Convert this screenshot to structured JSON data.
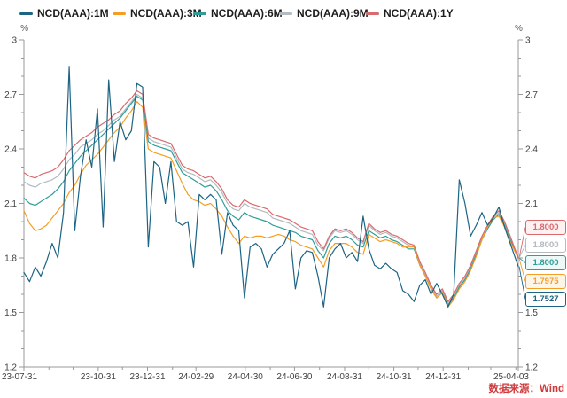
{
  "axis_unit": "%",
  "footer": {
    "source_label": "数据来源：Wind",
    "color": "#d0393b"
  },
  "callouts": [
    {
      "series": "NCD(AAA):1Y",
      "value": "1.8000",
      "color": "#d96a6e",
      "bg": "#fdf1f1"
    },
    {
      "series": "NCD(AAA):9M",
      "value": "1.8000",
      "color": "#b3bac0",
      "bg": "#ffffff"
    },
    {
      "series": "NCD(AAA):6M",
      "value": "1.8000",
      "color": "#2f9e98",
      "bg": "#eef8f7"
    },
    {
      "series": "NCD(AAA):3M",
      "value": "1.7975",
      "color": "#f59e23",
      "bg": "#fdf5e8"
    },
    {
      "series": "NCD(AAA):1M",
      "value": "1.7527",
      "color": "#1c6484",
      "bg": "#ffffff"
    }
  ],
  "chart_data": {
    "type": "line",
    "title": "",
    "ylabel": "%",
    "ylim": [
      1.2,
      3.0
    ],
    "y_minor_step": 0.1,
    "grid": false,
    "legend_position": "top",
    "x_start_date": "2023-07-31",
    "x_end_date": "2025-04-03",
    "x_total_days": 612,
    "x_axis_labels": [
      {
        "label": "23-07-31",
        "day": 0
      },
      {
        "label": "23-10-31",
        "day": 92
      },
      {
        "label": "23-12-31",
        "day": 153
      },
      {
        "label": "24-02-29",
        "day": 213
      },
      {
        "label": "24-04-30",
        "day": 274
      },
      {
        "label": "24-06-30",
        "day": 335
      },
      {
        "label": "24-08-31",
        "day": 397
      },
      {
        "label": "24-10-31",
        "day": 458
      },
      {
        "label": "24-12-31",
        "day": 519
      },
      {
        "label": "25-04-03",
        "day": 612
      }
    ],
    "x_month_tick_days": [
      31,
      61,
      122,
      184,
      244,
      305,
      366,
      427,
      488,
      550,
      578,
      609
    ],
    "y_ticks": [
      {
        "label": "3",
        "value": 3.0
      },
      {
        "label": "2.7",
        "value": 2.7
      },
      {
        "label": "2.4",
        "value": 2.4
      },
      {
        "label": "2.1",
        "value": 2.1
      },
      {
        "label": "1.8",
        "value": 1.8
      },
      {
        "label": "1.5",
        "value": 1.5
      },
      {
        "label": "1.2",
        "value": 1.2
      }
    ],
    "x_days": [
      0,
      7,
      14,
      21,
      28,
      35,
      42,
      49,
      56,
      63,
      70,
      77,
      84,
      91,
      98,
      105,
      112,
      119,
      126,
      133,
      140,
      147,
      154,
      161,
      168,
      175,
      182,
      189,
      196,
      203,
      210,
      217,
      224,
      231,
      238,
      245,
      252,
      259,
      266,
      273,
      280,
      287,
      294,
      301,
      308,
      315,
      322,
      329,
      336,
      343,
      350,
      357,
      364,
      371,
      378,
      385,
      392,
      399,
      406,
      413,
      420,
      427,
      434,
      441,
      448,
      455,
      462,
      469,
      476,
      483,
      490,
      497,
      504,
      511,
      518,
      525,
      532,
      539,
      546,
      553,
      560,
      567,
      574,
      581,
      588,
      595,
      602,
      612
    ],
    "series": [
      {
        "name": "NCD(AAA):1M",
        "color": "#1c6484",
        "last_label": "1.7527",
        "values": [
          1.72,
          1.67,
          1.75,
          1.7,
          1.78,
          1.88,
          1.8,
          2.05,
          2.85,
          1.95,
          2.25,
          2.45,
          2.3,
          2.62,
          1.97,
          2.78,
          2.33,
          2.55,
          2.45,
          2.5,
          2.76,
          2.74,
          1.86,
          2.33,
          2.3,
          2.1,
          2.33,
          2.0,
          1.98,
          2.0,
          1.75,
          2.15,
          2.12,
          2.15,
          2.12,
          1.82,
          2.05,
          1.98,
          1.95,
          1.58,
          1.86,
          1.88,
          1.85,
          1.75,
          1.82,
          1.85,
          1.88,
          1.95,
          1.63,
          1.8,
          1.84,
          1.83,
          1.7,
          1.53,
          1.8,
          1.85,
          1.88,
          1.8,
          1.83,
          1.78,
          2.03,
          1.85,
          1.76,
          1.74,
          1.77,
          1.74,
          1.72,
          1.62,
          1.6,
          1.56,
          1.65,
          1.68,
          1.6,
          1.66,
          1.6,
          1.53,
          1.6,
          2.23,
          2.1,
          1.92,
          1.98,
          2.05,
          1.98,
          2.02,
          2.08,
          1.97,
          1.88,
          1.7527
        ]
      },
      {
        "name": "NCD(AAA):3M",
        "color": "#f59e23",
        "last_label": "1.7975",
        "values": [
          2.06,
          1.99,
          1.95,
          1.96,
          1.98,
          2.02,
          2.06,
          2.1,
          2.16,
          2.2,
          2.26,
          2.31,
          2.34,
          2.37,
          2.41,
          2.45,
          2.49,
          2.52,
          2.57,
          2.61,
          2.66,
          2.63,
          2.4,
          2.38,
          2.37,
          2.36,
          2.35,
          2.28,
          2.21,
          2.15,
          2.12,
          2.11,
          2.09,
          2.1,
          2.07,
          2.03,
          1.97,
          1.92,
          1.88,
          1.92,
          1.91,
          1.92,
          1.92,
          1.91,
          1.92,
          1.93,
          1.92,
          1.9,
          1.89,
          1.87,
          1.86,
          1.85,
          1.8,
          1.75,
          1.84,
          1.88,
          1.88,
          1.88,
          1.86,
          1.83,
          1.82,
          1.93,
          1.91,
          1.89,
          1.9,
          1.89,
          1.88,
          1.86,
          1.86,
          1.86,
          1.76,
          1.7,
          1.63,
          1.58,
          1.61,
          1.53,
          1.57,
          1.63,
          1.67,
          1.73,
          1.81,
          1.9,
          1.97,
          2.02,
          2.03,
          1.97,
          1.89,
          1.7975
        ]
      },
      {
        "name": "NCD(AAA):6M",
        "color": "#2f9e98",
        "last_label": "1.8000",
        "values": [
          2.13,
          2.1,
          2.09,
          2.11,
          2.13,
          2.15,
          2.18,
          2.22,
          2.28,
          2.32,
          2.36,
          2.39,
          2.42,
          2.45,
          2.48,
          2.51,
          2.54,
          2.57,
          2.61,
          2.65,
          2.69,
          2.67,
          2.44,
          2.42,
          2.41,
          2.4,
          2.39,
          2.33,
          2.27,
          2.25,
          2.23,
          2.21,
          2.19,
          2.2,
          2.17,
          2.12,
          2.06,
          2.03,
          2.01,
          2.05,
          2.03,
          2.02,
          2.01,
          2.0,
          1.98,
          1.97,
          1.96,
          1.95,
          1.94,
          1.92,
          1.91,
          1.9,
          1.84,
          1.8,
          1.88,
          1.92,
          1.91,
          1.92,
          1.9,
          1.87,
          1.86,
          1.95,
          1.93,
          1.91,
          1.92,
          1.9,
          1.89,
          1.87,
          1.85,
          1.85,
          1.76,
          1.7,
          1.63,
          1.58,
          1.61,
          1.54,
          1.58,
          1.64,
          1.68,
          1.74,
          1.82,
          1.9,
          1.96,
          2.01,
          2.04,
          1.98,
          1.9,
          1.8
        ]
      },
      {
        "name": "NCD(AAA):9M",
        "color": "#b3bac0",
        "last_label": "1.8000",
        "values": [
          2.22,
          2.2,
          2.19,
          2.21,
          2.22,
          2.23,
          2.25,
          2.29,
          2.34,
          2.37,
          2.41,
          2.43,
          2.45,
          2.48,
          2.5,
          2.53,
          2.56,
          2.58,
          2.62,
          2.66,
          2.7,
          2.68,
          2.46,
          2.44,
          2.43,
          2.42,
          2.41,
          2.35,
          2.29,
          2.27,
          2.26,
          2.24,
          2.22,
          2.23,
          2.2,
          2.16,
          2.1,
          2.07,
          2.06,
          2.1,
          2.08,
          2.07,
          2.06,
          2.05,
          2.02,
          2.01,
          2.0,
          1.99,
          1.97,
          1.95,
          1.94,
          1.93,
          1.87,
          1.84,
          1.91,
          1.95,
          1.94,
          1.95,
          1.93,
          1.9,
          1.88,
          1.98,
          1.95,
          1.93,
          1.94,
          1.92,
          1.91,
          1.89,
          1.87,
          1.86,
          1.77,
          1.71,
          1.64,
          1.59,
          1.62,
          1.55,
          1.59,
          1.65,
          1.69,
          1.75,
          1.83,
          1.91,
          1.97,
          2.02,
          2.05,
          1.99,
          1.91,
          1.8
        ]
      },
      {
        "name": "NCD(AAA):1Y",
        "color": "#d96a6e",
        "last_label": "1.8000",
        "values": [
          2.27,
          2.25,
          2.24,
          2.26,
          2.27,
          2.28,
          2.3,
          2.34,
          2.39,
          2.42,
          2.45,
          2.47,
          2.49,
          2.52,
          2.54,
          2.56,
          2.59,
          2.61,
          2.65,
          2.68,
          2.72,
          2.7,
          2.48,
          2.46,
          2.45,
          2.44,
          2.43,
          2.37,
          2.31,
          2.29,
          2.28,
          2.26,
          2.24,
          2.25,
          2.22,
          2.18,
          2.12,
          2.09,
          2.08,
          2.12,
          2.1,
          2.09,
          2.08,
          2.07,
          2.04,
          2.03,
          2.02,
          2.01,
          1.99,
          1.97,
          1.96,
          1.95,
          1.89,
          1.85,
          1.92,
          1.96,
          1.95,
          1.96,
          1.94,
          1.91,
          1.89,
          1.99,
          1.96,
          1.94,
          1.95,
          1.93,
          1.92,
          1.9,
          1.88,
          1.87,
          1.78,
          1.72,
          1.65,
          1.6,
          1.63,
          1.56,
          1.6,
          1.66,
          1.7,
          1.76,
          1.84,
          1.92,
          1.98,
          2.03,
          2.06,
          2.0,
          1.92,
          1.8
        ]
      }
    ]
  }
}
